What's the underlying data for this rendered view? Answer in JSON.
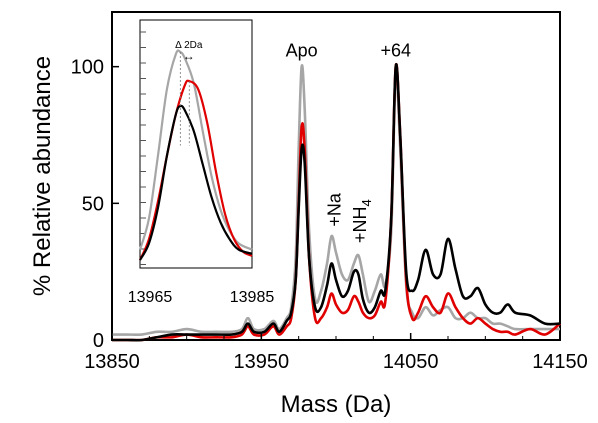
{
  "chart_data": {
    "type": "line",
    "xlabel": "Mass (Da)",
    "ylabel": "% Relative abundance",
    "xlim": [
      13850,
      14150
    ],
    "ylim": [
      0,
      120
    ],
    "x_ticks": [
      {
        "value": 13850,
        "label": "13850"
      },
      {
        "value": 13950,
        "label": "13950"
      },
      {
        "value": 14050,
        "label": "14050"
      },
      {
        "value": 14150,
        "label": "14150"
      }
    ],
    "y_ticks": [
      {
        "value": 0,
        "label": "0"
      },
      {
        "value": 50,
        "label": "50"
      },
      {
        "value": 100,
        "label": "100"
      }
    ],
    "peak_labels": [
      {
        "text": "Apo",
        "x": 13977,
        "y": 100
      },
      {
        "text": "+64",
        "x": 14040,
        "y": 100
      },
      {
        "text": "+Na",
        "x": 13999,
        "y": 40
      },
      {
        "text": "+NH",
        "sub": "4",
        "x": 14016,
        "y": 34
      }
    ],
    "series": [
      {
        "color": "#a6a6a6",
        "points": [
          [
            13850,
            2
          ],
          [
            13860,
            2
          ],
          [
            13870,
            2
          ],
          [
            13880,
            3
          ],
          [
            13890,
            3
          ],
          [
            13900,
            4
          ],
          [
            13910,
            3
          ],
          [
            13920,
            3
          ],
          [
            13930,
            3
          ],
          [
            13937,
            4
          ],
          [
            13941,
            8
          ],
          [
            13945,
            4
          ],
          [
            13952,
            4
          ],
          [
            13958,
            7
          ],
          [
            13962,
            4
          ],
          [
            13967,
            8
          ],
          [
            13970,
            12
          ],
          [
            13973,
            30
          ],
          [
            13975,
            70
          ],
          [
            13977,
            100
          ],
          [
            13979,
            85
          ],
          [
            13982,
            40
          ],
          [
            13986,
            15
          ],
          [
            13990,
            18
          ],
          [
            13994,
            28
          ],
          [
            13997,
            38
          ],
          [
            14000,
            32
          ],
          [
            14004,
            24
          ],
          [
            14008,
            22
          ],
          [
            14012,
            28
          ],
          [
            14015,
            31
          ],
          [
            14018,
            24
          ],
          [
            14022,
            14
          ],
          [
            14026,
            18
          ],
          [
            14030,
            24
          ],
          [
            14033,
            20
          ],
          [
            14037,
            40
          ],
          [
            14040,
            97
          ],
          [
            14043,
            70
          ],
          [
            14047,
            20
          ],
          [
            14051,
            10
          ],
          [
            14055,
            8
          ],
          [
            14060,
            12
          ],
          [
            14065,
            9
          ],
          [
            14070,
            11
          ],
          [
            14075,
            12
          ],
          [
            14080,
            8
          ],
          [
            14085,
            8
          ],
          [
            14090,
            10
          ],
          [
            14095,
            8
          ],
          [
            14100,
            8
          ],
          [
            14105,
            6
          ],
          [
            14110,
            6
          ],
          [
            14115,
            5
          ],
          [
            14120,
            4
          ],
          [
            14130,
            4
          ],
          [
            14140,
            4
          ],
          [
            14150,
            4
          ]
        ]
      },
      {
        "color": "#e00000",
        "points": [
          [
            13850,
            0
          ],
          [
            13860,
            0
          ],
          [
            13870,
            0
          ],
          [
            13880,
            1
          ],
          [
            13890,
            1
          ],
          [
            13900,
            2
          ],
          [
            13910,
            1
          ],
          [
            13920,
            1
          ],
          [
            13930,
            1
          ],
          [
            13937,
            2
          ],
          [
            13941,
            5
          ],
          [
            13945,
            2
          ],
          [
            13952,
            2
          ],
          [
            13958,
            5
          ],
          [
            13962,
            2
          ],
          [
            13967,
            5
          ],
          [
            13970,
            8
          ],
          [
            13973,
            22
          ],
          [
            13975,
            50
          ],
          [
            13977,
            78
          ],
          [
            13979,
            70
          ],
          [
            13982,
            30
          ],
          [
            13986,
            8
          ],
          [
            13990,
            8
          ],
          [
            13994,
            12
          ],
          [
            13997,
            17
          ],
          [
            14000,
            13
          ],
          [
            14004,
            10
          ],
          [
            14008,
            11
          ],
          [
            14012,
            16
          ],
          [
            14015,
            14
          ],
          [
            14018,
            10
          ],
          [
            14022,
            8
          ],
          [
            14026,
            9
          ],
          [
            14030,
            14
          ],
          [
            14033,
            14
          ],
          [
            14037,
            45
          ],
          [
            14040,
            100
          ],
          [
            14043,
            75
          ],
          [
            14047,
            22
          ],
          [
            14051,
            8
          ],
          [
            14055,
            10
          ],
          [
            14060,
            16
          ],
          [
            14065,
            12
          ],
          [
            14070,
            10
          ],
          [
            14075,
            17
          ],
          [
            14080,
            12
          ],
          [
            14085,
            8
          ],
          [
            14090,
            6
          ],
          [
            14095,
            8
          ],
          [
            14100,
            6
          ],
          [
            14105,
            4
          ],
          [
            14110,
            3
          ],
          [
            14115,
            3
          ],
          [
            14120,
            2
          ],
          [
            14130,
            4
          ],
          [
            14140,
            2
          ],
          [
            14150,
            6
          ]
        ]
      },
      {
        "color": "#000000",
        "points": [
          [
            13850,
            0
          ],
          [
            13860,
            0
          ],
          [
            13870,
            0
          ],
          [
            13880,
            1
          ],
          [
            13890,
            2
          ],
          [
            13900,
            2
          ],
          [
            13910,
            2
          ],
          [
            13920,
            2
          ],
          [
            13930,
            2
          ],
          [
            13937,
            3
          ],
          [
            13941,
            6
          ],
          [
            13945,
            3
          ],
          [
            13952,
            3
          ],
          [
            13958,
            6
          ],
          [
            13962,
            3
          ],
          [
            13967,
            7
          ],
          [
            13970,
            10
          ],
          [
            13973,
            22
          ],
          [
            13975,
            48
          ],
          [
            13977,
            70
          ],
          [
            13979,
            65
          ],
          [
            13982,
            30
          ],
          [
            13986,
            12
          ],
          [
            13990,
            12
          ],
          [
            13994,
            20
          ],
          [
            13997,
            28
          ],
          [
            14000,
            22
          ],
          [
            14004,
            16
          ],
          [
            14008,
            18
          ],
          [
            14012,
            25
          ],
          [
            14015,
            24
          ],
          [
            14018,
            15
          ],
          [
            14022,
            10
          ],
          [
            14026,
            12
          ],
          [
            14030,
            18
          ],
          [
            14033,
            18
          ],
          [
            14037,
            45
          ],
          [
            14040,
            100
          ],
          [
            14043,
            75
          ],
          [
            14047,
            25
          ],
          [
            14051,
            18
          ],
          [
            14055,
            22
          ],
          [
            14060,
            33
          ],
          [
            14065,
            24
          ],
          [
            14070,
            24
          ],
          [
            14075,
            37
          ],
          [
            14080,
            26
          ],
          [
            14085,
            16
          ],
          [
            14090,
            16
          ],
          [
            14095,
            19
          ],
          [
            14100,
            13
          ],
          [
            14105,
            10
          ],
          [
            14110,
            10
          ],
          [
            14115,
            13
          ],
          [
            14120,
            10
          ],
          [
            14130,
            9
          ],
          [
            14140,
            6
          ],
          [
            14150,
            6
          ]
        ]
      }
    ],
    "inset": {
      "xlim": [
        13965,
        13990
      ],
      "x_tick_labels": [
        {
          "value": 13965,
          "label": "13965"
        },
        {
          "value": 13985,
          "label": "13985"
        }
      ],
      "annotation": "Δ 2Da",
      "arrow": "↔",
      "series": [
        {
          "color": "#a6a6a6",
          "points": [
            [
              13965,
              0.05
            ],
            [
              13967,
              0.2
            ],
            [
              13969,
              0.5
            ],
            [
              13971,
              0.82
            ],
            [
              13973,
              0.99
            ],
            [
              13974,
              1.0
            ],
            [
              13975,
              0.97
            ],
            [
              13977,
              0.85
            ],
            [
              13979,
              0.62
            ],
            [
              13981,
              0.4
            ],
            [
              13983,
              0.24
            ],
            [
              13985,
              0.14
            ],
            [
              13987,
              0.08
            ],
            [
              13990,
              0.05
            ]
          ]
        },
        {
          "color": "#e00000",
          "points": [
            [
              13965,
              0.0
            ],
            [
              13967,
              0.1
            ],
            [
              13969,
              0.28
            ],
            [
              13971,
              0.5
            ],
            [
              13973,
              0.7
            ],
            [
              13975,
              0.84
            ],
            [
              13976,
              0.86
            ],
            [
              13978,
              0.82
            ],
            [
              13980,
              0.66
            ],
            [
              13982,
              0.42
            ],
            [
              13984,
              0.22
            ],
            [
              13986,
              0.1
            ],
            [
              13988,
              0.04
            ],
            [
              13990,
              0.02
            ]
          ]
        },
        {
          "color": "#000000",
          "points": [
            [
              13965,
              0.0
            ],
            [
              13967,
              0.08
            ],
            [
              13969,
              0.25
            ],
            [
              13971,
              0.5
            ],
            [
              13973,
              0.7
            ],
            [
              13974,
              0.74
            ],
            [
              13975,
              0.72
            ],
            [
              13977,
              0.62
            ],
            [
              13979,
              0.46
            ],
            [
              13981,
              0.3
            ],
            [
              13983,
              0.18
            ],
            [
              13985,
              0.1
            ],
            [
              13987,
              0.05
            ],
            [
              13990,
              0.03
            ]
          ]
        }
      ]
    }
  }
}
